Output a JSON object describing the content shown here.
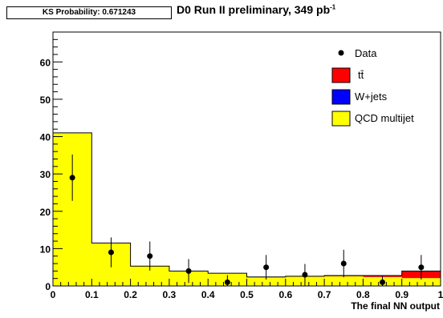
{
  "header": {
    "ks_label": "KS Probability: 0.671243",
    "title_prefix": "D0 Run II preliminary,  349 pb",
    "title_superscript": "-1"
  },
  "chart_data": {
    "type": "bar",
    "xlabel": "The final NN output",
    "ylabel": "",
    "xlim": [
      0,
      1
    ],
    "ylim": [
      0,
      68
    ],
    "x_ticks": [
      "0",
      "0.1",
      "0.2",
      "0.3",
      "0.4",
      "0.5",
      "0.6",
      "0.7",
      "0.8",
      "0.9",
      "1"
    ],
    "y_ticks": [
      "0",
      "10",
      "20",
      "30",
      "40",
      "50",
      "60"
    ],
    "bin_edges": [
      0.0,
      0.1,
      0.2,
      0.3,
      0.4,
      0.5,
      0.6,
      0.7,
      0.8,
      0.9,
      1.0
    ],
    "stack": [
      {
        "name": "QCD  multijet",
        "color": "#ffff00",
        "values": [
          41.0,
          11.5,
          5.3,
          4.0,
          3.4,
          2.3,
          2.5,
          2.6,
          2.4,
          2.1
        ]
      },
      {
        "name": "W+jets",
        "color": "#0000ff",
        "values": [
          0.0,
          0.0,
          0.0,
          0.0,
          0.0,
          0.0,
          0.0,
          0.0,
          0.0,
          0.0
        ]
      },
      {
        "name": "tt̄",
        "color": "#ff0000",
        "values": [
          0.0,
          0.0,
          0.0,
          0.0,
          0.0,
          0.1,
          0.1,
          0.2,
          0.4,
          1.9
        ]
      }
    ],
    "data_series": {
      "name": "Data",
      "x": [
        0.05,
        0.15,
        0.25,
        0.35,
        0.45,
        0.55,
        0.65,
        0.75,
        0.85,
        0.95
      ],
      "y": [
        29,
        9,
        8,
        4,
        1,
        5,
        3,
        6,
        1,
        5
      ],
      "err": [
        6.2,
        4.0,
        3.9,
        3.2,
        1.9,
        3.3,
        2.9,
        3.7,
        1.8,
        3.3
      ]
    },
    "legend": [
      {
        "label": "Data",
        "kind": "marker"
      },
      {
        "label": "tt̄",
        "kind": "box",
        "color": "#ff0000"
      },
      {
        "label": "W+jets",
        "kind": "box",
        "color": "#0000ff"
      },
      {
        "label": "QCD  multijet",
        "kind": "box",
        "color": "#ffff00"
      }
    ],
    "legend_position": "top-right",
    "grid": false
  }
}
